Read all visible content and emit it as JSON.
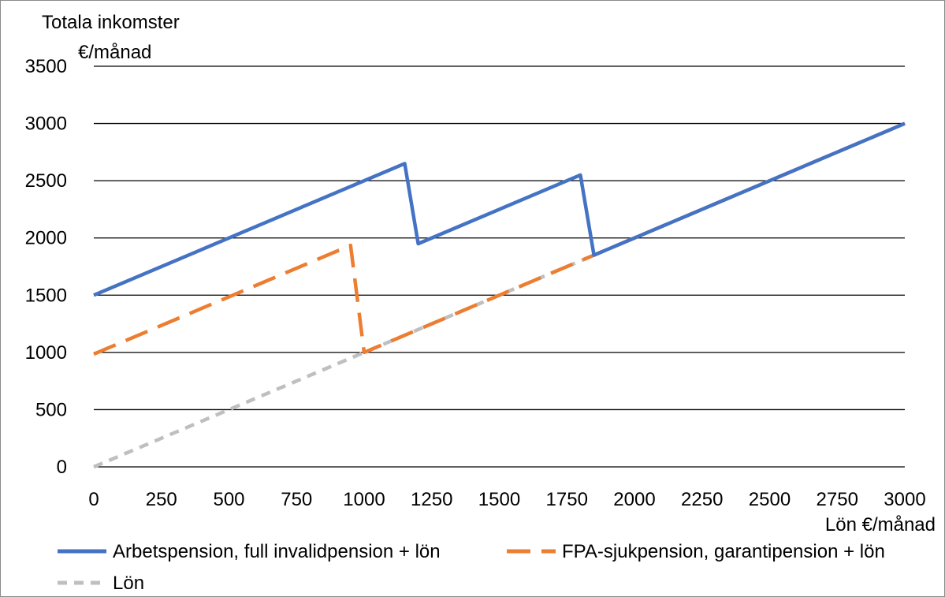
{
  "chart_data": {
    "type": "line",
    "title": "",
    "ylabel_line1": "Totala inkomster",
    "ylabel_line2": "€/månad",
    "xlabel": "Lön €/månad",
    "xlim": [
      0,
      3000
    ],
    "ylim": [
      0,
      3500
    ],
    "x_ticks": [
      0,
      250,
      500,
      750,
      1000,
      1250,
      1500,
      1750,
      2000,
      2250,
      2500,
      2750,
      3000
    ],
    "y_ticks": [
      0,
      500,
      1000,
      1500,
      2000,
      2500,
      3000,
      3500
    ],
    "grid": "horizontal",
    "legend_position": "bottom",
    "series": [
      {
        "name": "Arbetspension, full invalidpension + lön",
        "color": "#4472C4",
        "dash": "solid",
        "points": [
          [
            0,
            1500
          ],
          [
            1150,
            2650
          ],
          [
            1200,
            1950
          ],
          [
            1800,
            2550
          ],
          [
            1850,
            1850
          ],
          [
            3000,
            3000
          ]
        ]
      },
      {
        "name": "FPA-sjukpension, garantipension + lön",
        "color": "#ED7D31",
        "dash": "long-dash",
        "points": [
          [
            0,
            985
          ],
          [
            950,
            1935
          ],
          [
            1000,
            1000
          ],
          [
            3000,
            3000
          ]
        ]
      },
      {
        "name": "Lön",
        "color": "#BFBFBF",
        "dash": "short-dash",
        "points": [
          [
            0,
            0
          ],
          [
            3000,
            3000
          ]
        ]
      }
    ]
  }
}
